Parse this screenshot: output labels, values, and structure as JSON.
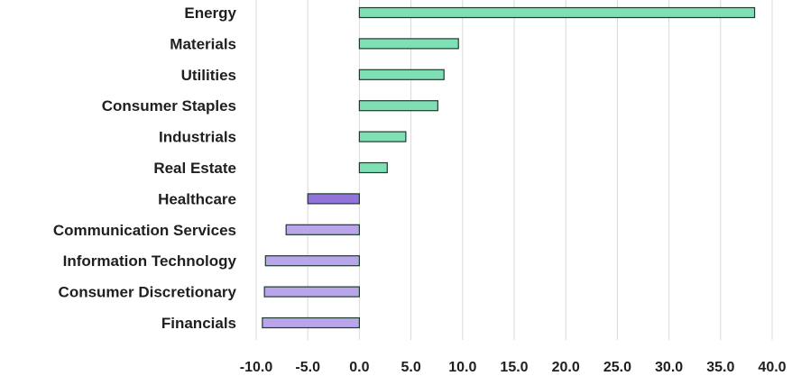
{
  "chart_data": {
    "type": "bar",
    "orientation": "horizontal",
    "categories": [
      "Energy",
      "Materials",
      "Utilities",
      "Consumer Staples",
      "Industrials",
      "Real Estate",
      "Healthcare",
      "Communication Services",
      "Information Technology",
      "Consumer Discretionary",
      "Financials"
    ],
    "values": [
      38.3,
      9.6,
      8.2,
      7.6,
      4.5,
      2.7,
      -5.0,
      -7.1,
      -9.1,
      -9.2,
      -9.4
    ],
    "xlim": [
      -10,
      40
    ],
    "xticks": [
      "-10.0",
      "-5.0",
      "0.0",
      "5.0",
      "10.0",
      "15.0",
      "20.0",
      "25.0",
      "30.0",
      "35.0",
      "40.0"
    ],
    "grid": true,
    "colors": {
      "positive": "#7fe0b6",
      "negative": "#b9a6ea",
      "highlight": "#9173da",
      "outline": "#1f3b2f"
    },
    "highlight_category": "Healthcare"
  }
}
